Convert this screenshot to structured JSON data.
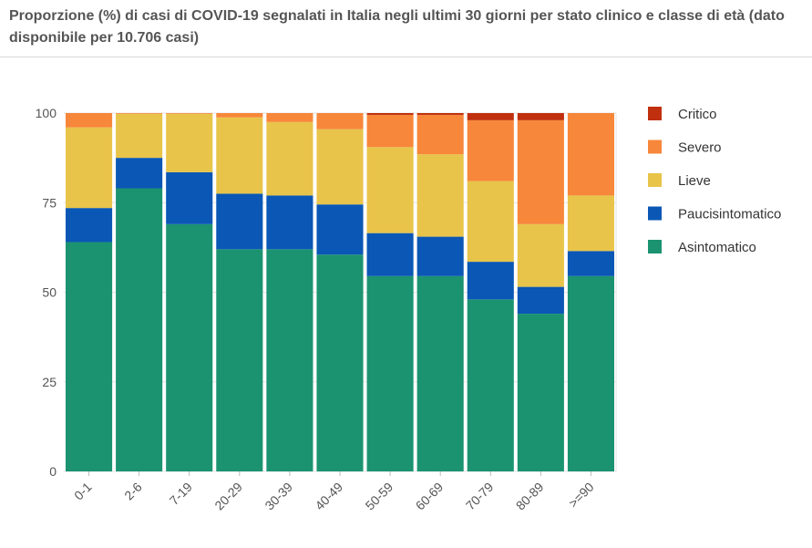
{
  "title": "Proporzione (%) di casi di COVID-19 segnalati in Italia negli ultimi 30 giorni per stato clinico e classe di età (dato disponibile per 10.706 casi)",
  "chart_data": {
    "type": "bar",
    "stacked": true,
    "title": "Proporzione (%) di casi di COVID-19 segnalati in Italia negli ultimi 30 giorni per stato clinico e classe di età (dato disponibile per 10.706 casi)",
    "xlabel": "",
    "ylabel": "",
    "ylim": [
      0,
      100
    ],
    "yticks": [
      0,
      25,
      50,
      75,
      100
    ],
    "grid": true,
    "legend_position": "right",
    "categories": [
      "0-1",
      "2-6",
      "7-19",
      "20-29",
      "30-39",
      "40-49",
      "50-59",
      "60-69",
      "70-79",
      "80-89",
      ">=90"
    ],
    "series": [
      {
        "name": "Asintomatico",
        "color": "#1b9370",
        "values": [
          64,
          79,
          69,
          62,
          62,
          60.5,
          54.5,
          54.5,
          48,
          44,
          54.5
        ]
      },
      {
        "name": "Paucisintomatico",
        "color": "#0a57b5",
        "values": [
          9.5,
          8.5,
          14.5,
          15.5,
          15,
          14,
          12,
          11,
          10.5,
          7.5,
          7
        ]
      },
      {
        "name": "Lieve",
        "color": "#e8c44a",
        "values": [
          22.5,
          12.3,
          16.3,
          21.3,
          20.5,
          21,
          24,
          23,
          22.5,
          17.5,
          15.5
        ]
      },
      {
        "name": "Severo",
        "color": "#f7873a",
        "values": [
          4,
          0.2,
          0.2,
          1.2,
          2.5,
          4.5,
          9,
          11,
          17,
          29,
          23
        ]
      },
      {
        "name": "Critico",
        "color": "#c0300e",
        "values": [
          0,
          0,
          0,
          0,
          0,
          0,
          0.5,
          0.5,
          2,
          2,
          0
        ]
      }
    ]
  }
}
